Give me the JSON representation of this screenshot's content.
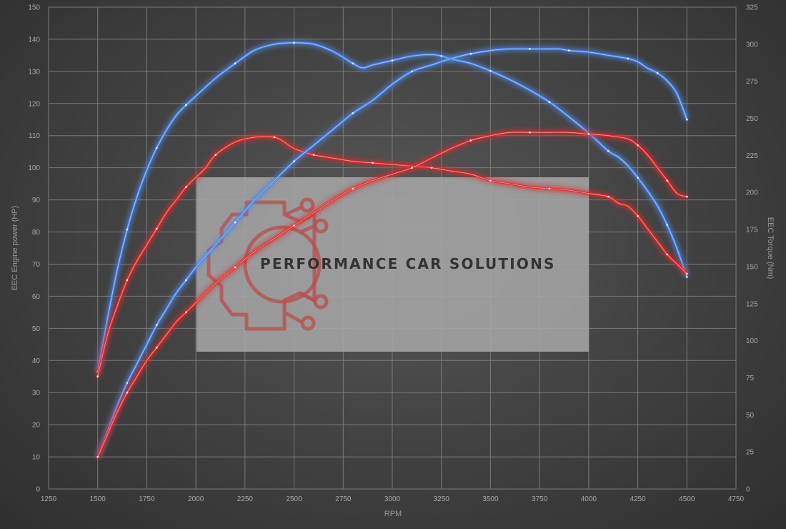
{
  "chart_data": {
    "type": "line",
    "xlabel": "RPM",
    "ylabel_left": "EEC Engine power (HP)",
    "ylabel_right": "EEC Torque (Nm)",
    "xlim": [
      1250,
      4750
    ],
    "x_ticks": [
      1250,
      1500,
      1750,
      2000,
      2250,
      2500,
      2750,
      3000,
      3250,
      3500,
      3750,
      4000,
      4250,
      4500,
      4750
    ],
    "ylim_left": [
      0,
      150
    ],
    "y_ticks_left": [
      0,
      10,
      20,
      30,
      40,
      50,
      60,
      70,
      80,
      90,
      100,
      110,
      120,
      130,
      140,
      150
    ],
    "ylim_right": [
      0,
      325
    ],
    "y_ticks_right": [
      0,
      25,
      50,
      75,
      100,
      125,
      150,
      175,
      200,
      225,
      250,
      275,
      300,
      325
    ],
    "grid": true,
    "series": [
      {
        "axis": "right",
        "color": "#4a86e8",
        "x": [
          1500,
          1550,
          1600,
          1650,
          1700,
          1750,
          1800,
          1850,
          1900,
          1950,
          2000,
          2100,
          2200,
          2300,
          2400,
          2500,
          2600,
          2700,
          2800,
          2850,
          2900,
          3000,
          3100,
          3200,
          3250,
          3300,
          3400,
          3500,
          3600,
          3700,
          3800,
          3900,
          4000,
          4100,
          4150,
          4200,
          4250,
          4300,
          4350,
          4400,
          4450,
          4500
        ],
        "values": [
          79,
          115,
          148,
          175,
          197,
          215,
          230,
          242,
          252,
          259,
          265,
          277,
          287,
          296,
          300,
          301,
          300,
          295,
          287,
          284,
          286,
          289,
          292,
          293,
          292,
          290,
          287,
          282,
          276,
          269,
          261,
          251,
          240,
          228,
          224,
          218,
          210,
          201,
          191,
          178,
          162,
          143
        ]
      },
      {
        "axis": "left",
        "color": "#e02a2a",
        "x": [
          1500,
          1550,
          1600,
          1650,
          1700,
          1750,
          1800,
          1850,
          1900,
          1950,
          2000,
          2050,
          2100,
          2200,
          2300,
          2400,
          2450,
          2500,
          2600,
          2700,
          2800,
          2900,
          3000,
          3100,
          3200,
          3300,
          3400,
          3500,
          3600,
          3700,
          3800,
          3900,
          4000,
          4100,
          4150,
          4200,
          4250,
          4300,
          4350,
          4400,
          4450,
          4500
        ],
        "values": [
          35,
          48,
          57,
          65,
          71,
          76,
          81,
          86,
          90,
          94,
          97,
          100,
          104,
          108,
          109.5,
          109.5,
          108,
          106,
          104,
          103,
          102,
          101.5,
          101,
          100.5,
          100,
          99,
          98,
          96,
          95,
          94,
          93.5,
          93,
          92,
          91,
          89,
          88,
          85,
          81,
          77,
          73,
          70,
          67
        ]
      },
      {
        "axis": "left",
        "color": "#4a86e8",
        "x": [
          1500,
          1550,
          1600,
          1650,
          1700,
          1750,
          1800,
          1850,
          1900,
          1950,
          2000,
          2100,
          2200,
          2300,
          2400,
          2500,
          2600,
          2700,
          2800,
          2900,
          3000,
          3100,
          3200,
          3300,
          3400,
          3500,
          3600,
          3700,
          3800,
          3850,
          3900,
          4000,
          4100,
          4200,
          4250,
          4300,
          4350,
          4400,
          4450,
          4500
        ],
        "values": [
          10,
          18,
          26,
          33,
          39,
          45,
          51,
          56,
          61,
          65,
          69,
          76,
          83,
          90,
          96,
          102,
          107,
          112,
          117,
          121,
          126,
          130,
          132,
          134,
          135.5,
          136.5,
          137,
          137,
          137,
          137,
          136.5,
          136,
          135,
          134,
          133,
          131,
          129.5,
          127,
          123,
          115
        ]
      },
      {
        "axis": "left",
        "color": "#e02a2a",
        "x": [
          1500,
          1550,
          1600,
          1650,
          1700,
          1750,
          1800,
          1850,
          1900,
          1950,
          2000,
          2100,
          2200,
          2300,
          2400,
          2500,
          2600,
          2700,
          2800,
          2900,
          3000,
          3100,
          3200,
          3300,
          3400,
          3500,
          3600,
          3700,
          3800,
          3900,
          4000,
          4100,
          4200,
          4250,
          4300,
          4350,
          4400,
          4450,
          4500
        ],
        "values": [
          10,
          17,
          24,
          30,
          35,
          40,
          44,
          48,
          52,
          55,
          58,
          64,
          69,
          74,
          78,
          82,
          86,
          90,
          93.5,
          96,
          98,
          100,
          103,
          106,
          108.5,
          110,
          111,
          111,
          111,
          111,
          110.5,
          110,
          109,
          107,
          104,
          100,
          96,
          92,
          91
        ]
      }
    ]
  },
  "watermark": {
    "text": "PERFORMANCE CAR SOLUTIONS",
    "logo_color": "#b85050",
    "text_color": "#333333"
  }
}
